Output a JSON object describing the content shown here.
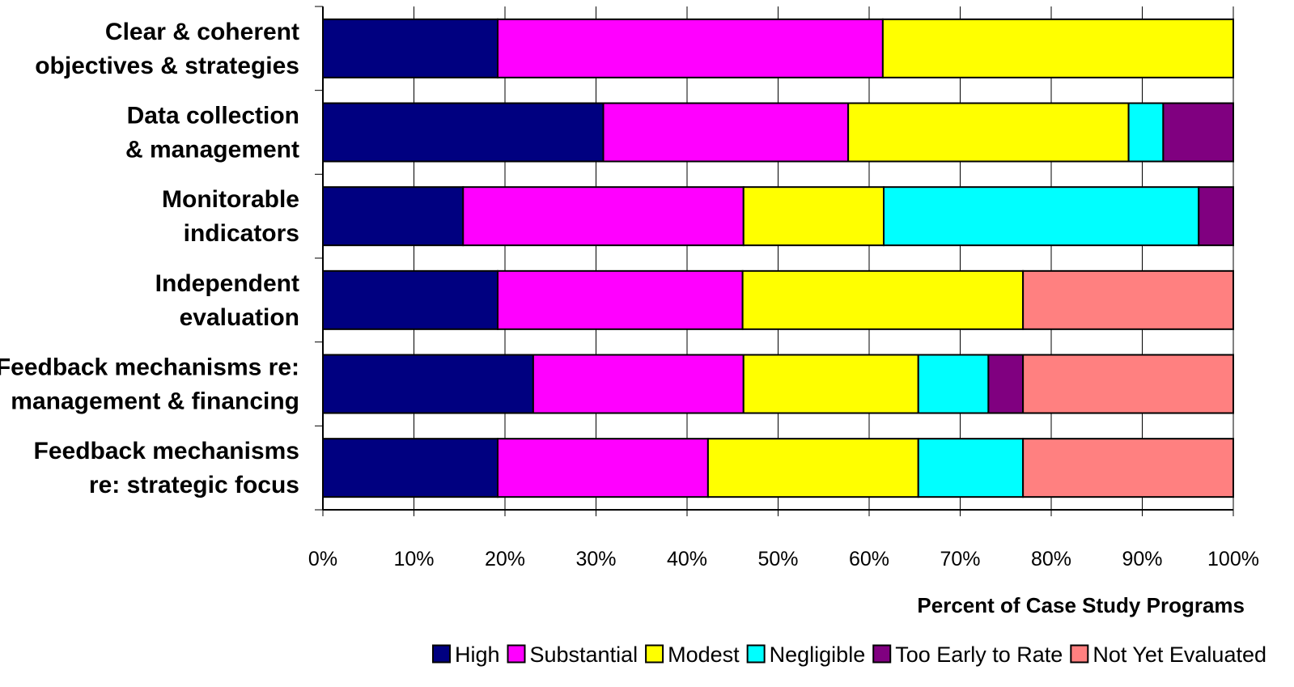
{
  "chart_data": {
    "type": "bar",
    "orientation": "horizontal",
    "stacked": true,
    "percent_stacked": true,
    "categories": [
      [
        "Clear & coherent",
        "objectives & strategies"
      ],
      [
        "Data collection",
        "& management"
      ],
      [
        "Monitorable",
        "indicators"
      ],
      [
        "Independent",
        "evaluation"
      ],
      [
        "Feedback mechanisms re:",
        "management & financing"
      ],
      [
        "Feedback mechanisms",
        "re: strategic focus"
      ]
    ],
    "series": [
      {
        "name": "High",
        "color": "#000080",
        "values": [
          19.2,
          30.8,
          15.4,
          19.2,
          23.1,
          19.2
        ]
      },
      {
        "name": "Substantial",
        "color": "#FF00FF",
        "values": [
          42.3,
          26.9,
          30.8,
          26.9,
          23.1,
          23.1
        ]
      },
      {
        "name": "Modest",
        "color": "#FFFF00",
        "values": [
          38.5,
          30.8,
          15.4,
          30.8,
          19.2,
          23.1
        ]
      },
      {
        "name": "Negligible",
        "color": "#00FFFF",
        "values": [
          0,
          3.8,
          34.6,
          0,
          7.7,
          11.5
        ]
      },
      {
        "name": "Too Early to Rate",
        "color": "#800080",
        "values": [
          0,
          7.7,
          3.8,
          0,
          3.8,
          0
        ]
      },
      {
        "name": "Not Yet Evaluated",
        "color": "#FF8080",
        "values": [
          0,
          0,
          0,
          23.1,
          23.1,
          23.1
        ]
      }
    ],
    "xlim": [
      0,
      100
    ],
    "xticks": [
      "0%",
      "10%",
      "20%",
      "30%",
      "40%",
      "50%",
      "60%",
      "70%",
      "80%",
      "90%",
      "100%"
    ],
    "xlabel": "Percent of Case Study Programs",
    "ylabel": "",
    "title": "",
    "grid": "vertical",
    "legend_position": "bottom-right"
  }
}
